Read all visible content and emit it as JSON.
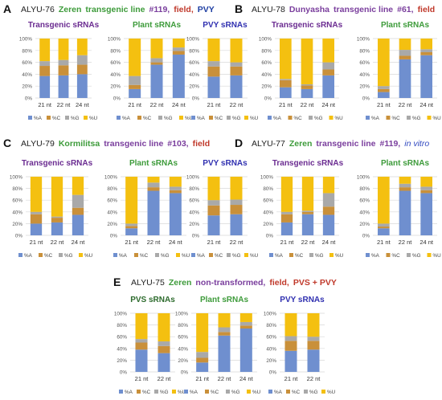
{
  "colors": {
    "A": "#6f8fcf",
    "C": "#c9903a",
    "G": "#a9a9a9",
    "U": "#f4c010",
    "zeren": "#3d9b3a",
    "dunyasha": "#7a3e9d",
    "kormilitsa": "#3d9b3a",
    "field": "#c0392b",
    "pvy": "#1f3fa3",
    "pvs": "#2d7d2d",
    "invitro": "#3048c0",
    "transgenic_title": "#6b2c91",
    "plant_title": "#3d9b3a",
    "pvy_title": "#3030b0",
    "pvs_title": "#2d6b2d"
  },
  "panels": [
    {
      "letter": "A",
      "code": "ALYU-76",
      "parts": [
        {
          "text": "Zeren",
          "color": "zeren"
        },
        {
          "text": "transgenic line",
          "color": "zeren"
        },
        {
          "text": "#119,",
          "color": "dunyasha"
        },
        {
          "text": "field,",
          "color": "field"
        },
        {
          "text": "PVY",
          "color": "pvy"
        }
      ]
    },
    {
      "letter": "B",
      "code": "ALYU-78",
      "parts": [
        {
          "text": "Dunyasha",
          "color": "dunyasha"
        },
        {
          "text": "transgenic line",
          "color": "dunyasha"
        },
        {
          "text": "#61,",
          "color": "dunyasha"
        },
        {
          "text": "field",
          "color": "field"
        }
      ]
    },
    {
      "letter": "C",
      "code": "ALYU-79",
      "parts": [
        {
          "text": "Kormilitsa",
          "color": "kormilitsa"
        },
        {
          "text": "transgenic line",
          "color": "dunyasha"
        },
        {
          "text": "#103,",
          "color": "dunyasha"
        },
        {
          "text": "field",
          "color": "field"
        }
      ]
    },
    {
      "letter": "D",
      "code": "ALYU-77",
      "parts": [
        {
          "text": "Zeren",
          "color": "zeren"
        },
        {
          "text": "transgenic line",
          "color": "dunyasha"
        },
        {
          "text": "#119,",
          "color": "dunyasha"
        },
        {
          "text": "in vitro",
          "color": "invitro",
          "italic": true
        }
      ]
    },
    {
      "letter": "E",
      "code": "ALYU-75",
      "parts": [
        {
          "text": "Zeren",
          "color": "zeren"
        },
        {
          "text": "non-transformed,",
          "color": "dunyasha"
        },
        {
          "text": "field,",
          "color": "field"
        },
        {
          "text": "PVS + PVY",
          "color": "field"
        }
      ]
    }
  ],
  "legend_labels": [
    "%A",
    "%C",
    "%G",
    "%U"
  ],
  "y_ticks": [
    "0%",
    "20%",
    "40%",
    "60%",
    "80%",
    "100%"
  ],
  "chart_data": [
    {
      "panel": "A",
      "title": "Transgenic sRNAs",
      "title_color": "transgenic_title",
      "type": "bar",
      "stacked": true,
      "ylim": [
        0,
        100
      ],
      "categories": [
        "21 nt",
        "22 nt",
        "24 nt"
      ],
      "series": [
        {
          "name": "%A",
          "values": [
            37,
            38,
            40
          ]
        },
        {
          "name": "%C",
          "values": [
            17,
            17,
            16
          ]
        },
        {
          "name": "%G",
          "values": [
            8,
            9,
            16
          ]
        },
        {
          "name": "%U",
          "values": [
            38,
            36,
            28
          ]
        }
      ]
    },
    {
      "panel": "A",
      "title": "Plant sRNAs",
      "title_color": "plant_title",
      "type": "bar",
      "stacked": true,
      "ylim": [
        0,
        100
      ],
      "categories": [
        "21 nt",
        "22 nt",
        "24 nt"
      ],
      "series": [
        {
          "name": "%A",
          "values": [
            15,
            56,
            73
          ]
        },
        {
          "name": "%C",
          "values": [
            7,
            4,
            6
          ]
        },
        {
          "name": "%G",
          "values": [
            15,
            7,
            6
          ]
        },
        {
          "name": "%U",
          "values": [
            63,
            33,
            15
          ]
        }
      ]
    },
    {
      "panel": "A",
      "title": "PVY sRNAs",
      "title_color": "pvy_title",
      "type": "bar",
      "stacked": true,
      "ylim": [
        0,
        100
      ],
      "categories": [
        "21 nt",
        "22 nt"
      ],
      "series": [
        {
          "name": "%A",
          "values": [
            36,
            38
          ]
        },
        {
          "name": "%C",
          "values": [
            17,
            15
          ]
        },
        {
          "name": "%G",
          "values": [
            9,
            7
          ]
        },
        {
          "name": "%U",
          "values": [
            38,
            40
          ]
        }
      ]
    },
    {
      "panel": "B",
      "title": "Transgenic sRNAs",
      "title_color": "transgenic_title",
      "type": "bar",
      "stacked": true,
      "ylim": [
        0,
        100
      ],
      "categories": [
        "21 nt",
        "22 nt",
        "24 nt"
      ],
      "series": [
        {
          "name": "%A",
          "values": [
            18,
            15,
            38
          ]
        },
        {
          "name": "%C",
          "values": [
            12,
            6,
            10
          ]
        },
        {
          "name": "%G",
          "values": [
            2,
            2,
            12
          ]
        },
        {
          "name": "%U",
          "values": [
            68,
            77,
            40
          ]
        }
      ]
    },
    {
      "panel": "B",
      "title": "Plant sRNAs",
      "title_color": "plant_title",
      "type": "bar",
      "stacked": true,
      "ylim": [
        0,
        100
      ],
      "categories": [
        "21 nt",
        "22 nt",
        "24 nt"
      ],
      "series": [
        {
          "name": "%A",
          "values": [
            10,
            65,
            72
          ]
        },
        {
          "name": "%C",
          "values": [
            5,
            6,
            5
          ]
        },
        {
          "name": "%G",
          "values": [
            5,
            10,
            5
          ]
        },
        {
          "name": "%U",
          "values": [
            80,
            19,
            18
          ]
        }
      ]
    },
    {
      "panel": "C",
      "title": "Transgenic sRNAs",
      "title_color": "transgenic_title",
      "type": "bar",
      "stacked": true,
      "ylim": [
        0,
        100
      ],
      "categories": [
        "21 nt",
        "22 nt",
        "24 nt"
      ],
      "series": [
        {
          "name": "%A",
          "values": [
            20,
            22,
            35
          ]
        },
        {
          "name": "%C",
          "values": [
            16,
            8,
            12
          ]
        },
        {
          "name": "%G",
          "values": [
            4,
            2,
            22
          ]
        },
        {
          "name": "%U",
          "values": [
            60,
            68,
            31
          ]
        }
      ]
    },
    {
      "panel": "C",
      "title": "Plant sRNAs",
      "title_color": "plant_title",
      "type": "bar",
      "stacked": true,
      "ylim": [
        0,
        100
      ],
      "categories": [
        "21 nt",
        "22 nt",
        "24 nt"
      ],
      "series": [
        {
          "name": "%A",
          "values": [
            12,
            76,
            72
          ]
        },
        {
          "name": "%C",
          "values": [
            4,
            6,
            5
          ]
        },
        {
          "name": "%G",
          "values": [
            4,
            8,
            6
          ]
        },
        {
          "name": "%U",
          "values": [
            80,
            10,
            17
          ]
        }
      ]
    },
    {
      "panel": "C",
      "title": "PVY sRNAs",
      "title_color": "pvy_title",
      "type": "bar",
      "stacked": true,
      "ylim": [
        0,
        100
      ],
      "categories": [
        "21 nt",
        "22 nt"
      ],
      "series": [
        {
          "name": "%A",
          "values": [
            34,
            36
          ]
        },
        {
          "name": "%C",
          "values": [
            17,
            16
          ]
        },
        {
          "name": "%G",
          "values": [
            9,
            9
          ]
        },
        {
          "name": "%U",
          "values": [
            40,
            39
          ]
        }
      ]
    },
    {
      "panel": "D",
      "title": "Transgenic sRNAs",
      "title_color": "transgenic_title",
      "type": "bar",
      "stacked": true,
      "ylim": [
        0,
        100
      ],
      "categories": [
        "21 nt",
        "22 nt",
        "24 nt"
      ],
      "series": [
        {
          "name": "%A",
          "values": [
            22,
            36,
            35
          ]
        },
        {
          "name": "%C",
          "values": [
            14,
            4,
            14
          ]
        },
        {
          "name": "%G",
          "values": [
            4,
            2,
            23
          ]
        },
        {
          "name": "%U",
          "values": [
            60,
            58,
            28
          ]
        }
      ]
    },
    {
      "panel": "D",
      "title": "Plant sRNAs",
      "title_color": "plant_title",
      "type": "bar",
      "stacked": true,
      "ylim": [
        0,
        100
      ],
      "categories": [
        "21 nt",
        "22 nt",
        "24 nt"
      ],
      "series": [
        {
          "name": "%A",
          "values": [
            12,
            76,
            72
          ]
        },
        {
          "name": "%C",
          "values": [
            3,
            6,
            5
          ]
        },
        {
          "name": "%G",
          "values": [
            5,
            6,
            6
          ]
        },
        {
          "name": "%U",
          "values": [
            80,
            12,
            17
          ]
        }
      ]
    },
    {
      "panel": "E",
      "title": "PVS sRNAs",
      "title_color": "pvs_title",
      "type": "bar",
      "stacked": true,
      "ylim": [
        0,
        100
      ],
      "categories": [
        "21 nt",
        "22 nt"
      ],
      "series": [
        {
          "name": "%A",
          "values": [
            38,
            32
          ]
        },
        {
          "name": "%C",
          "values": [
            12,
            12
          ]
        },
        {
          "name": "%G",
          "values": [
            6,
            8
          ]
        },
        {
          "name": "%U",
          "values": [
            44,
            48
          ]
        }
      ]
    },
    {
      "panel": "E",
      "title": "Plant sRNAs",
      "title_color": "plant_title",
      "type": "bar",
      "stacked": true,
      "ylim": [
        0,
        100
      ],
      "categories": [
        "21 nt",
        "22 nt",
        "24 nt"
      ],
      "series": [
        {
          "name": "%A",
          "values": [
            16,
            62,
            74
          ]
        },
        {
          "name": "%C",
          "values": [
            8,
            6,
            5
          ]
        },
        {
          "name": "%G",
          "values": [
            10,
            8,
            6
          ]
        },
        {
          "name": "%U",
          "values": [
            66,
            24,
            15
          ]
        }
      ]
    },
    {
      "panel": "E",
      "title": "PVY sRNAs",
      "title_color": "pvy_title",
      "type": "bar",
      "stacked": true,
      "ylim": [
        0,
        100
      ],
      "categories": [
        "21 nt",
        "22 nt"
      ],
      "series": [
        {
          "name": "%A",
          "values": [
            36,
            38
          ]
        },
        {
          "name": "%C",
          "values": [
            17,
            15
          ]
        },
        {
          "name": "%G",
          "values": [
            8,
            7
          ]
        },
        {
          "name": "%U",
          "values": [
            39,
            40
          ]
        }
      ]
    }
  ]
}
